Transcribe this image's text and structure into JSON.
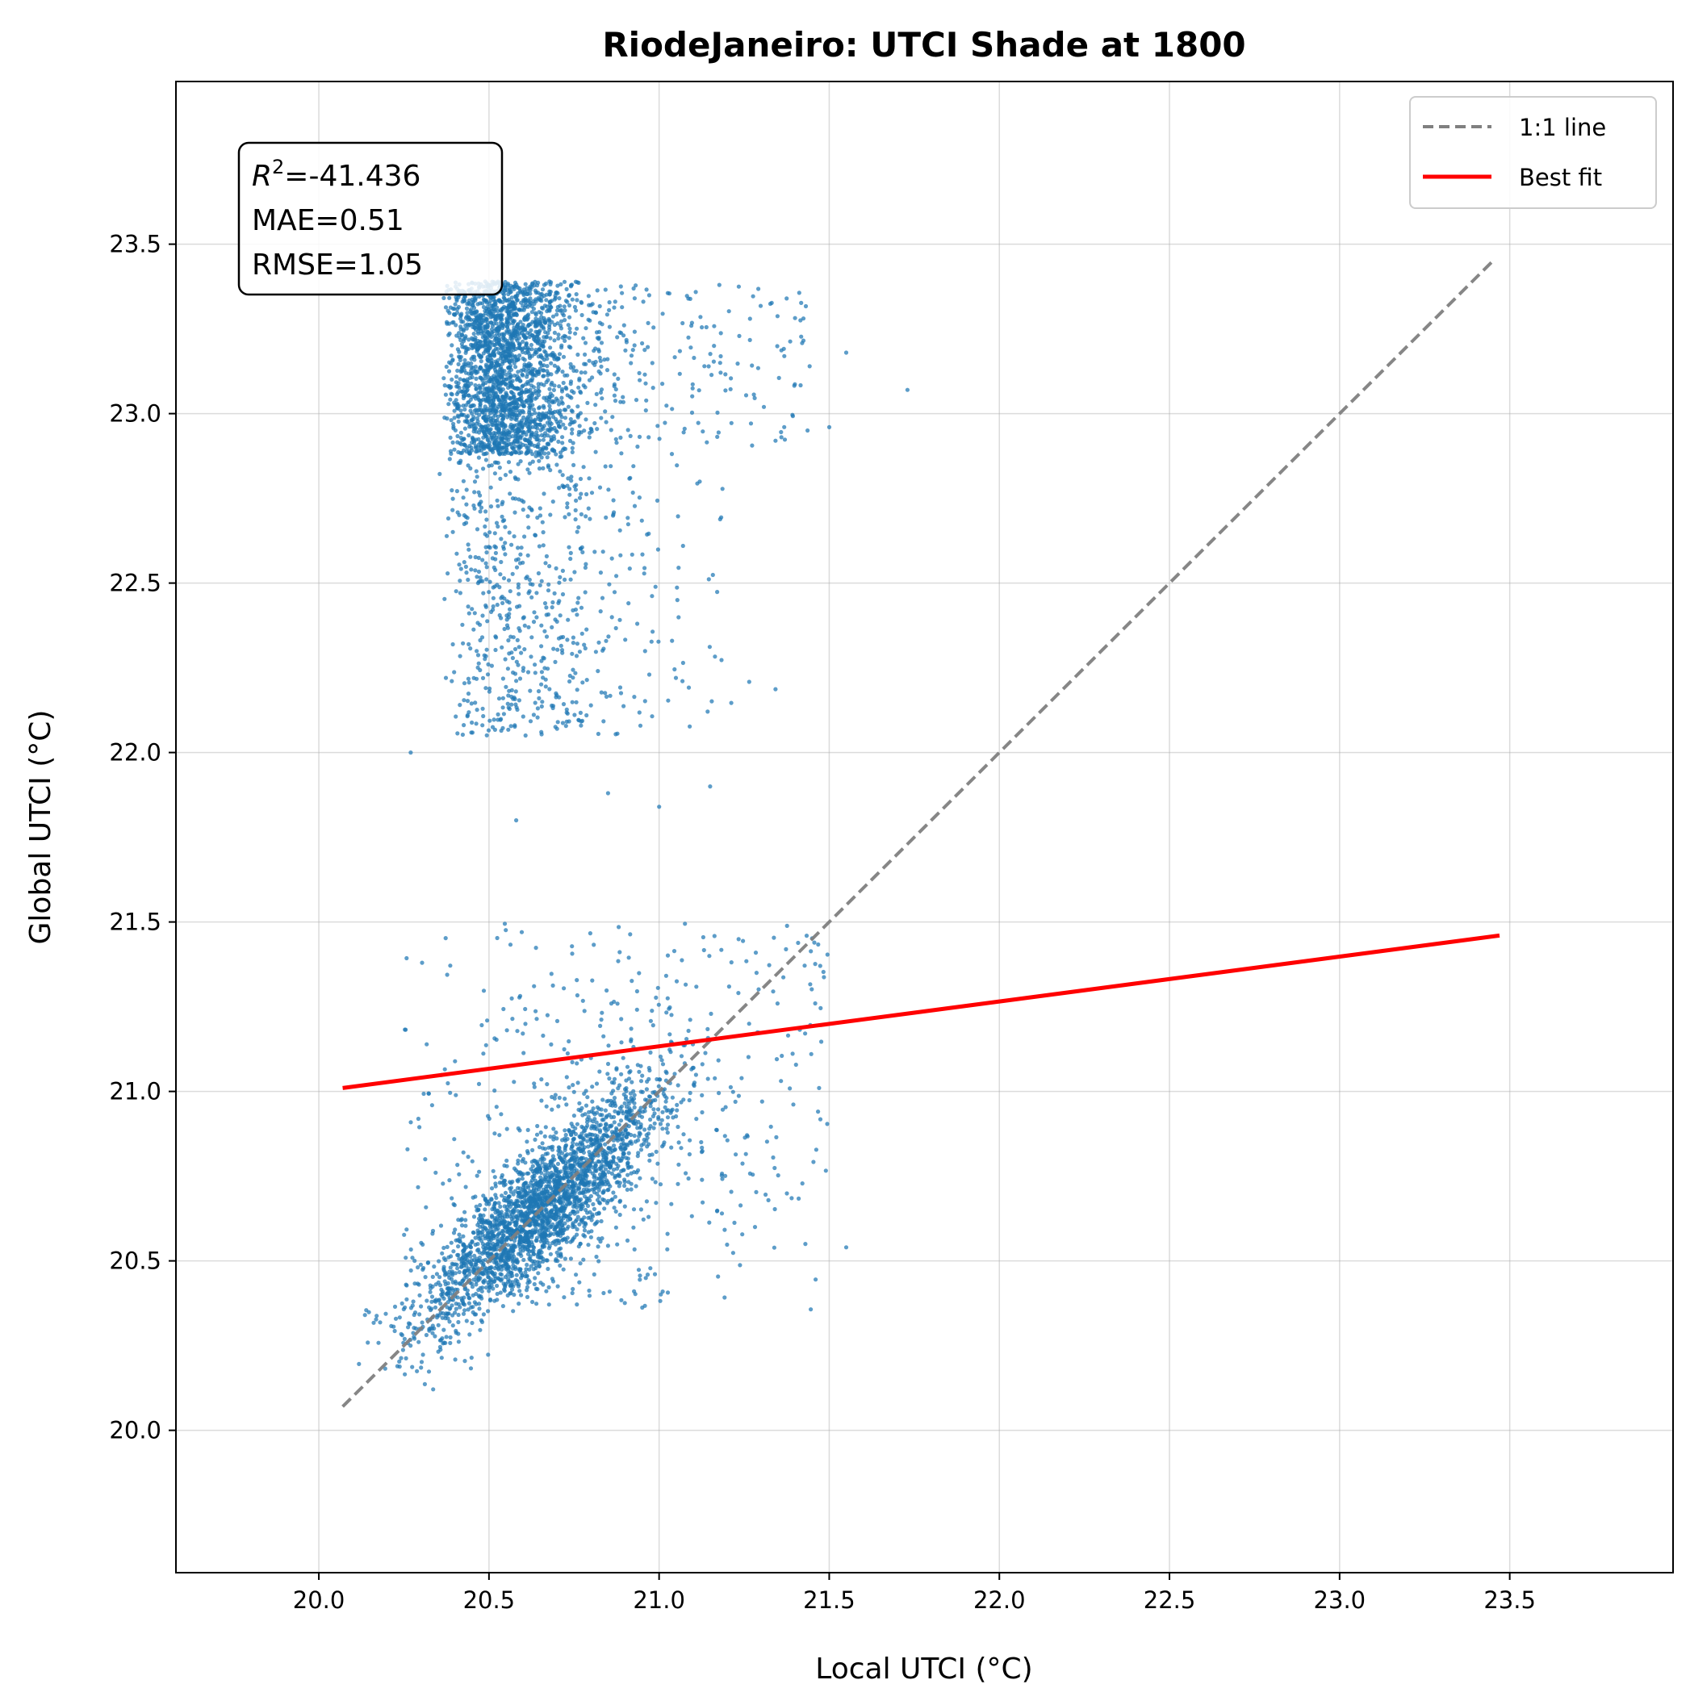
{
  "chart_data": {
    "type": "scatter",
    "title": "RiodeJaneiro: UTCI Shade at 1800",
    "xlabel": "Local UTCI (°C)",
    "ylabel": "Global UTCI (°C)",
    "xlim": [
      19.58,
      23.98
    ],
    "ylim": [
      19.58,
      23.98
    ],
    "xticks": [
      "20.0",
      "20.5",
      "21.0",
      "21.5",
      "22.0",
      "22.5",
      "23.0",
      "23.5"
    ],
    "yticks": [
      "20.0",
      "20.5",
      "21.0",
      "21.5",
      "22.0",
      "22.5",
      "23.0",
      "23.5"
    ],
    "grid": true,
    "legend_position": "top-right",
    "stats": {
      "r2_prefix": "R",
      "r2_exp": "2",
      "r2_value": "=-41.436",
      "mae": "MAE=0.51",
      "rmse": "RMSE=1.05"
    },
    "series": [
      {
        "name": "points",
        "kind": "scatter",
        "color": "#1f77b4",
        "clusters": [
          {
            "x_range": [
              20.33,
              20.86
            ],
            "y_range": [
              22.86,
              23.4
            ],
            "density": "high"
          },
          {
            "x_range": [
              20.3,
              21.5
            ],
            "y_range": [
              21.85,
              22.95
            ],
            "density": "low"
          },
          {
            "x_range": [
              20.15,
              21.3
            ],
            "y_range": [
              20.1,
              21.55
            ],
            "density": "high",
            "note": "along 1:1"
          }
        ]
      },
      {
        "name": "1:1 line",
        "kind": "line",
        "style": "dashed",
        "color": "#808080",
        "x": [
          20.07,
          23.45
        ],
        "y": [
          20.07,
          23.45
        ]
      },
      {
        "name": "Best fit",
        "kind": "line",
        "style": "solid",
        "color": "#ff0000",
        "x": [
          20.07,
          23.47
        ],
        "y": [
          21.01,
          21.46
        ]
      }
    ]
  }
}
